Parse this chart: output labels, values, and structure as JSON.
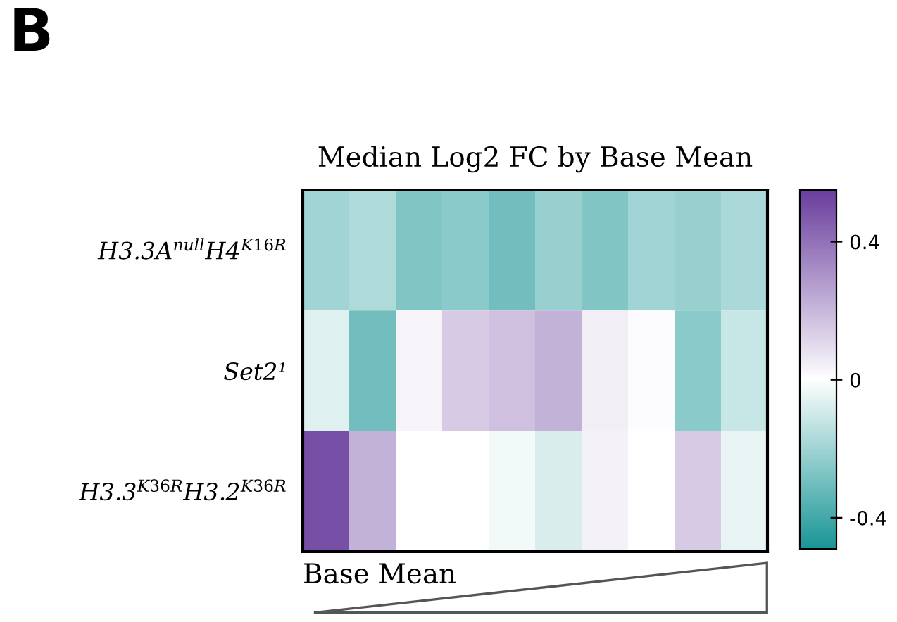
{
  "chart_data": {
    "type": "heatmap",
    "title": "Median Log2 FC by Base Mean",
    "xlabel": "Base Mean",
    "annotations": [
      "B"
    ],
    "categories": [
      null,
      null,
      null,
      null,
      null,
      null,
      null,
      null,
      null,
      null
    ],
    "y_categories": [
      "H3.3A$^{null}$H4$^{K16R}$",
      "Set2¹",
      "H3.3$^{K36R}$H3.2$^{K36R}$"
    ],
    "cells": [
      [
        -0.2,
        -0.17,
        -0.27,
        -0.25,
        -0.3,
        -0.22,
        -0.27,
        -0.2,
        -0.22,
        -0.18
      ],
      [
        -0.07,
        -0.3,
        0.03,
        0.15,
        0.18,
        0.22,
        0.05,
        0.01,
        -0.25,
        -0.12
      ],
      [
        0.5,
        0.22,
        0.0,
        0.0,
        -0.03,
        -0.08,
        0.04,
        0.0,
        0.15,
        -0.05
      ]
    ],
    "clim": [
      -0.49,
      0.55
    ],
    "cticks": [
      -0.4,
      0,
      0.4
    ]
  }
}
